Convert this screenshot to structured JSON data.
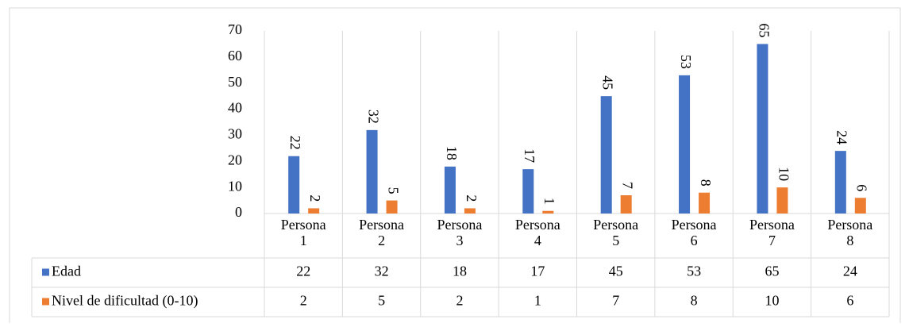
{
  "chart_data": {
    "type": "bar",
    "categories": [
      "Persona 1",
      "Persona 2",
      "Persona 3",
      "Persona 4",
      "Persona 5",
      "Persona 6",
      "Persona 7",
      "Persona 8"
    ],
    "series": [
      {
        "name": "Edad",
        "color": "#4472c4",
        "values": [
          22,
          32,
          18,
          17,
          45,
          53,
          65,
          24
        ]
      },
      {
        "name": "Nivel de dificultad (0-10)",
        "color": "#ed7d31",
        "values": [
          2,
          5,
          2,
          1,
          7,
          8,
          10,
          6
        ]
      }
    ],
    "ylim": [
      0,
      70
    ],
    "yticks": [
      0,
      10,
      20,
      30,
      40,
      50,
      60,
      70
    ]
  }
}
